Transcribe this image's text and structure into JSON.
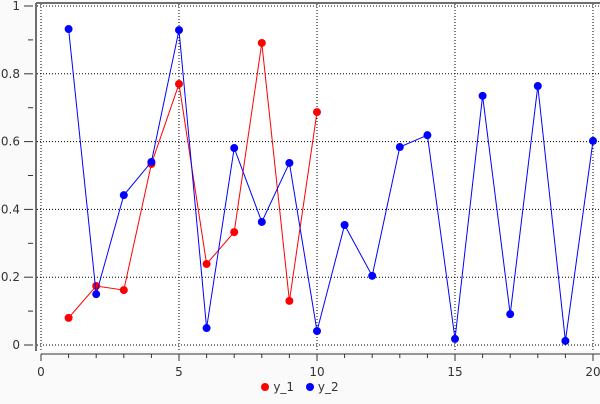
{
  "chart_data": {
    "type": "line",
    "title": "",
    "xlabel": "",
    "ylabel": "",
    "xlim": [
      0,
      20
    ],
    "ylim": [
      0,
      1
    ],
    "xticks": [
      "0",
      "5",
      "10",
      "15",
      "20"
    ],
    "yticks": [
      "0",
      "0.2",
      "0.4",
      "0.6",
      "0.8",
      "1"
    ],
    "grid": true,
    "legend": "bottom",
    "series": [
      {
        "name": "y_1",
        "color": "#ff0000",
        "x": [
          1,
          2,
          3,
          4,
          5,
          6,
          7,
          8,
          9,
          10
        ],
        "y": [
          0.08,
          0.174,
          0.162,
          0.534,
          0.77,
          0.239,
          0.333,
          0.891,
          0.13,
          0.687
        ]
      },
      {
        "name": "y_2",
        "color": "#0000ff",
        "x": [
          1,
          2,
          3,
          4,
          5,
          6,
          7,
          8,
          9,
          10,
          11,
          12,
          13,
          14,
          15,
          16,
          17,
          18,
          19,
          20
        ],
        "y": [
          0.932,
          0.15,
          0.442,
          0.54,
          0.929,
          0.05,
          0.581,
          0.363,
          0.537,
          0.041,
          0.354,
          0.204,
          0.584,
          0.619,
          0.018,
          0.735,
          0.091,
          0.764,
          0.012,
          0.602
        ]
      }
    ]
  }
}
